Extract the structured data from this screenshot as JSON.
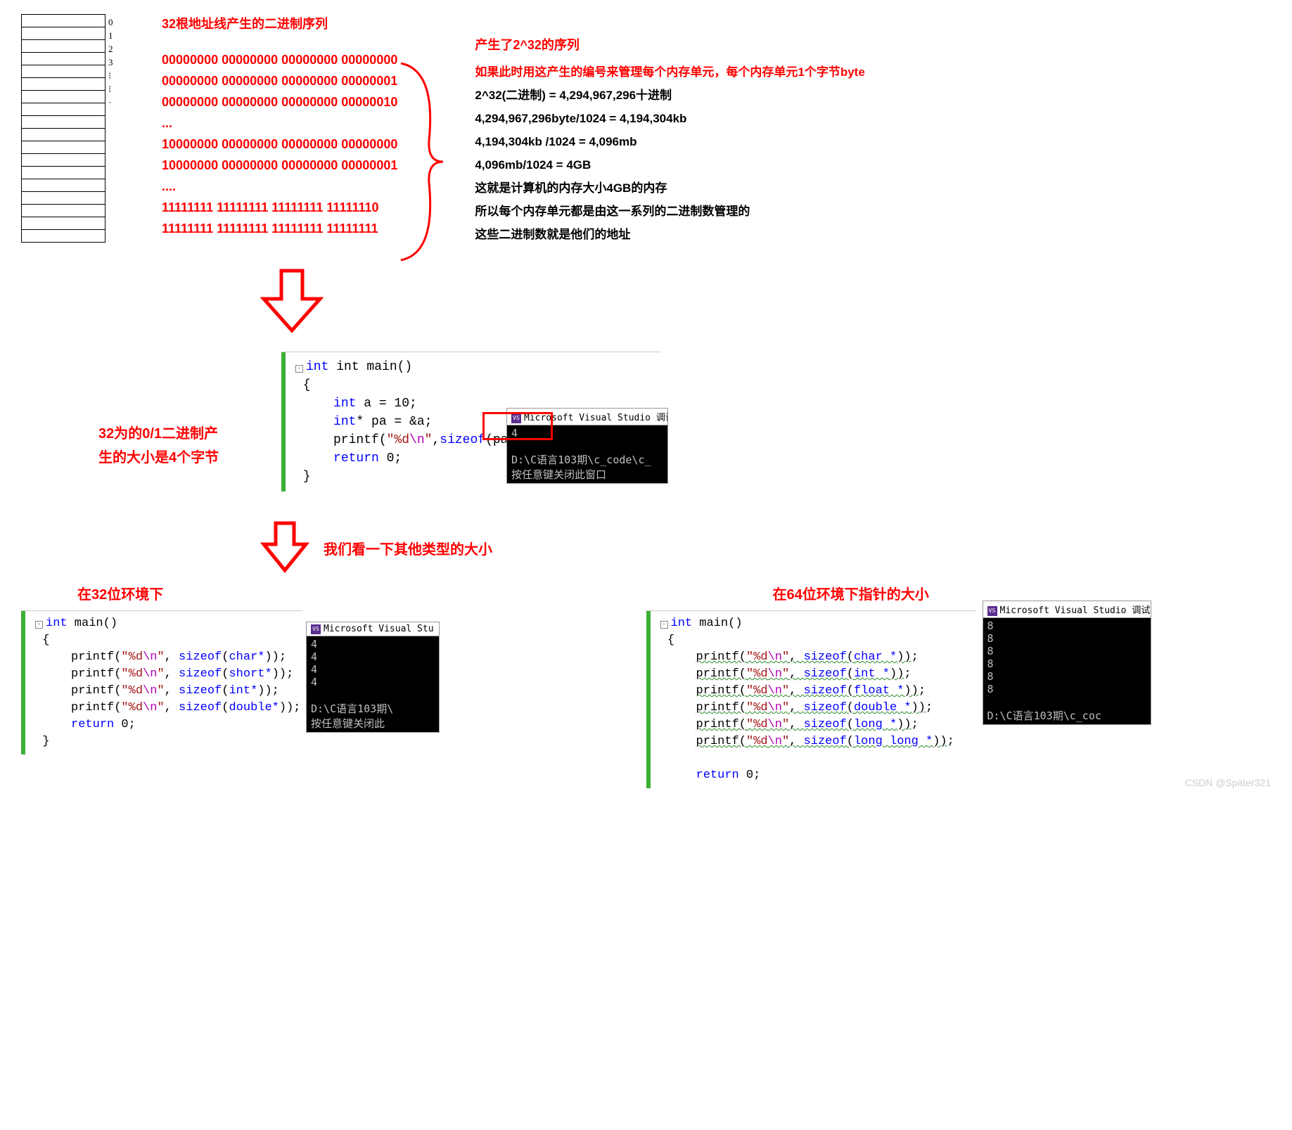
{
  "colors": {
    "red": "#ff0000",
    "black": "#000000",
    "code_kw": "#0000ff",
    "code_str": "#a31515",
    "code_esc": "#b000b0",
    "green_bar": "#3cb034",
    "console_bg": "#000000",
    "console_fg": "#c0c0c0",
    "brace": "#ff0000",
    "wavy": "#2a8a2a"
  },
  "fonts": {
    "body": "Microsoft YaHei",
    "code": "Consolas",
    "handwrite": "Comic Sans MS"
  },
  "memory_grid": {
    "rows": 18,
    "labels": [
      "0",
      "1",
      "2",
      "3",
      "⁝",
      "⁝",
      "",
      "",
      "",
      "",
      "",
      "",
      "",
      "",
      "",
      "",
      "",
      "·"
    ]
  },
  "top": {
    "title": "32根地址线产生的二进制序列",
    "binary_lines": [
      "00000000 00000000 00000000 00000000",
      "00000000 00000000 00000000 00000001",
      "00000000 00000000 00000000 00000010",
      "...",
      "10000000 00000000 00000000 00000000",
      "10000000 00000000 00000000 00000001",
      "....",
      "11111111 11111111 11111111 11111110",
      "11111111 11111111 11111111 11111111"
    ],
    "seq_title": "产生了2^32的序列",
    "explain": [
      "如果此时用这产生的编号来管理每个内存单元，每个内存单元1个字节byte",
      "2^32(二进制) = 4,294,967,296十进制",
      "4,294,967,296byte/1024 = 4,194,304kb",
      "4,194,304kb /1024 = 4,096mb",
      "4,096mb/1024 = 4GB",
      "这就是计算机的内存大小4GB的内存",
      "所以每个内存单元都是由这一系列的二进制数管理的",
      "这些二进制数就是他们的地址"
    ]
  },
  "mid": {
    "left_note_l1": "32为的0/1二进制产",
    "left_note_l2": "生的大小是4个字节",
    "code": {
      "sig": "int main()",
      "l1": "int a = 10;",
      "l2_a": "int* pa = &a;",
      "l3_printf": "printf",
      "l3_fmt_a": "\"%d",
      "l3_fmt_esc": "\\n",
      "l3_fmt_b": "\"",
      "l3_sizeof": "sizeof",
      "l3_arg": "(pa));",
      "l4": "return 0;"
    },
    "console": {
      "title": "Microsoft Visual Studio 调试控制台",
      "out_line1": "4",
      "out_line2": "D:\\C语言103期\\c_code\\c_",
      "out_line3": "按任意键关闭此窗口"
    },
    "other_types_note": "我们看一下其他类型的大小"
  },
  "bot": {
    "left": {
      "env": "在32位环境下",
      "code_sig": "int main()",
      "lines": [
        {
          "type": "char*"
        },
        {
          "type": "short*"
        },
        {
          "type": "int*"
        },
        {
          "type": "double*"
        }
      ],
      "ret": "return 0;",
      "console_title": "Microsoft Visual Stu",
      "console_out": [
        "4",
        "4",
        "4",
        "4",
        "",
        "D:\\C语言103期\\",
        "按任意键关闭此"
      ]
    },
    "right": {
      "env": "在64位环境下指针的大小",
      "code_sig": "int main()",
      "lines": [
        {
          "type": "char *"
        },
        {
          "type": "int *"
        },
        {
          "type": "float *"
        },
        {
          "type": "double *"
        },
        {
          "type": "long *"
        },
        {
          "type": "long long *"
        }
      ],
      "ret": "return 0;",
      "console_title": "Microsoft Visual Studio 调试控",
      "console_out": [
        "8",
        "8",
        "8",
        "8",
        "8",
        "8",
        "",
        "D:\\C语言103期\\c_coc"
      ]
    }
  },
  "watermark": "CSDN @Später321"
}
